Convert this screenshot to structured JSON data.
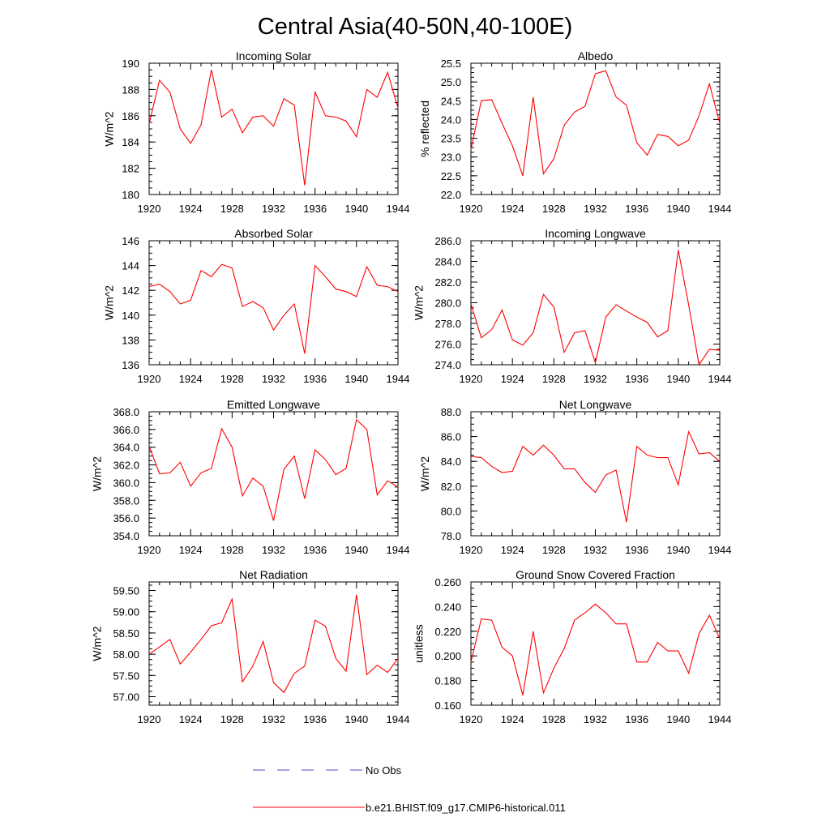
{
  "figure": {
    "title": "Central Asia(40-50N,40-100E)",
    "legend": [
      {
        "label": "No Obs",
        "style": "dashed",
        "color": "#4a4ac8"
      },
      {
        "label": "b.e21.BHIST.f09_g17.CMIP6-historical.011",
        "style": "solid",
        "color": "#ff0000"
      }
    ]
  },
  "chart_data": [
    {
      "type": "line",
      "title": "Incoming Solar",
      "ylabel": "W/m^2",
      "xlim": [
        1920,
        1944
      ],
      "ylim": [
        180,
        190
      ],
      "x_ticks": [
        "1920",
        "1924",
        "1928",
        "1932",
        "1936",
        "1940",
        "1944"
      ],
      "y_ticks": [
        "180",
        "182",
        "184",
        "186",
        "188",
        "190"
      ],
      "series": [
        {
          "color": "#ff0000",
          "x": [
            1920,
            1921,
            1922,
            1923,
            1924,
            1925,
            1926,
            1927,
            1928,
            1929,
            1930,
            1931,
            1932,
            1933,
            1934,
            1935,
            1936,
            1937,
            1938,
            1939,
            1940,
            1941,
            1942,
            1943,
            1944
          ],
          "values": [
            185.4,
            188.7,
            187.8,
            185.0,
            183.9,
            185.3,
            189.5,
            185.9,
            186.5,
            184.7,
            185.9,
            186.0,
            185.2,
            187.3,
            186.8,
            180.7,
            187.8,
            186.0,
            185.9,
            185.6,
            184.4,
            188.0,
            187.4,
            189.3,
            186.6
          ]
        }
      ]
    },
    {
      "type": "line",
      "title": "Albedo",
      "ylabel": "% reflected",
      "xlim": [
        1920,
        1944
      ],
      "ylim": [
        22.0,
        25.5
      ],
      "x_ticks": [
        "1920",
        "1924",
        "1928",
        "1932",
        "1936",
        "1940",
        "1944"
      ],
      "y_ticks": [
        "22.0",
        "22.5",
        "23.0",
        "23.5",
        "24.0",
        "24.5",
        "25.0",
        "25.5"
      ],
      "series": [
        {
          "color": "#ff0000",
          "x": [
            1920,
            1921,
            1922,
            1923,
            1924,
            1925,
            1926,
            1927,
            1928,
            1929,
            1930,
            1931,
            1932,
            1933,
            1934,
            1935,
            1936,
            1937,
            1938,
            1939,
            1940,
            1941,
            1942,
            1943,
            1944
          ],
          "values": [
            23.2,
            24.5,
            24.53,
            23.9,
            23.3,
            22.5,
            24.6,
            22.55,
            22.95,
            23.85,
            24.2,
            24.35,
            25.22,
            25.3,
            24.6,
            24.38,
            23.38,
            23.05,
            23.6,
            23.55,
            23.3,
            23.45,
            24.1,
            24.95,
            23.9
          ]
        }
      ]
    },
    {
      "type": "line",
      "title": "Absorbed Solar",
      "ylabel": "W/m^2",
      "xlim": [
        1920,
        1944
      ],
      "ylim": [
        136,
        146
      ],
      "x_ticks": [
        "1920",
        "1924",
        "1928",
        "1932",
        "1936",
        "1940",
        "1944"
      ],
      "y_ticks": [
        "136",
        "138",
        "140",
        "142",
        "144",
        "146"
      ],
      "series": [
        {
          "color": "#ff0000",
          "x": [
            1920,
            1921,
            1922,
            1923,
            1924,
            1925,
            1926,
            1927,
            1928,
            1929,
            1930,
            1931,
            1932,
            1933,
            1934,
            1935,
            1936,
            1937,
            1938,
            1939,
            1940,
            1941,
            1942,
            1943,
            1944
          ],
          "values": [
            142.3,
            142.5,
            141.9,
            140.9,
            141.2,
            143.6,
            143.1,
            144.1,
            143.8,
            140.7,
            141.1,
            140.6,
            138.8,
            140.0,
            140.9,
            136.9,
            144.0,
            143.1,
            142.1,
            141.9,
            141.5,
            143.9,
            142.4,
            142.3,
            141.9
          ]
        }
      ]
    },
    {
      "type": "line",
      "title": "Incoming Longwave",
      "ylabel": "W/m^2",
      "xlim": [
        1920,
        1944
      ],
      "ylim": [
        274.0,
        286.0
      ],
      "x_ticks": [
        "1920",
        "1924",
        "1928",
        "1932",
        "1936",
        "1940",
        "1944"
      ],
      "y_ticks": [
        "274.0",
        "276.0",
        "278.0",
        "280.0",
        "282.0",
        "284.0",
        "286.0"
      ],
      "series": [
        {
          "color": "#ff0000",
          "x": [
            1920,
            1921,
            1922,
            1923,
            1924,
            1925,
            1926,
            1927,
            1928,
            1929,
            1930,
            1931,
            1932,
            1933,
            1934,
            1935,
            1936,
            1937,
            1938,
            1939,
            1940,
            1941,
            1942,
            1943,
            1944
          ],
          "values": [
            279.9,
            276.6,
            277.4,
            279.3,
            276.4,
            275.9,
            277.1,
            280.8,
            279.6,
            275.2,
            277.1,
            277.3,
            274.2,
            278.6,
            279.8,
            279.2,
            278.6,
            278.1,
            276.7,
            277.3,
            285.1,
            279.8,
            274.0,
            275.5,
            275.4
          ]
        }
      ]
    },
    {
      "type": "line",
      "title": "Emitted Longwave",
      "ylabel": "W/m^2",
      "xlim": [
        1920,
        1944
      ],
      "ylim": [
        354.0,
        368.0
      ],
      "x_ticks": [
        "1920",
        "1924",
        "1928",
        "1932",
        "1936",
        "1940",
        "1944"
      ],
      "y_ticks": [
        "354.0",
        "356.0",
        "358.0",
        "360.0",
        "362.0",
        "364.0",
        "366.0",
        "368.0"
      ],
      "series": [
        {
          "color": "#ff0000",
          "x": [
            1920,
            1921,
            1922,
            1923,
            1924,
            1925,
            1926,
            1927,
            1928,
            1929,
            1930,
            1931,
            1932,
            1933,
            1934,
            1935,
            1936,
            1937,
            1938,
            1939,
            1940,
            1941,
            1942,
            1943,
            1944
          ],
          "values": [
            364.1,
            361.0,
            361.1,
            362.3,
            359.6,
            361.1,
            361.6,
            366.1,
            364.0,
            358.5,
            360.5,
            359.6,
            355.7,
            361.5,
            363.0,
            358.2,
            363.7,
            362.6,
            360.9,
            361.6,
            367.1,
            366.0,
            358.6,
            360.2,
            359.5
          ]
        }
      ]
    },
    {
      "type": "line",
      "title": "Net Longwave",
      "ylabel": "W/m^2",
      "xlim": [
        1920,
        1944
      ],
      "ylim": [
        78.0,
        88.0
      ],
      "x_ticks": [
        "1920",
        "1924",
        "1928",
        "1932",
        "1936",
        "1940",
        "1944"
      ],
      "y_ticks": [
        "78.0",
        "80.0",
        "82.0",
        "84.0",
        "86.0",
        "88.0"
      ],
      "series": [
        {
          "color": "#ff0000",
          "x": [
            1920,
            1921,
            1922,
            1923,
            1924,
            1925,
            1926,
            1927,
            1928,
            1929,
            1930,
            1931,
            1932,
            1933,
            1934,
            1935,
            1936,
            1937,
            1938,
            1939,
            1940,
            1941,
            1942,
            1943,
            1944
          ],
          "values": [
            84.4,
            84.3,
            83.6,
            83.1,
            83.2,
            85.2,
            84.5,
            85.3,
            84.5,
            83.4,
            83.4,
            82.3,
            81.5,
            82.9,
            83.3,
            79.1,
            85.2,
            84.5,
            84.3,
            84.3,
            82.1,
            86.4,
            84.6,
            84.7,
            84.0
          ]
        }
      ]
    },
    {
      "type": "line",
      "title": "Net Radiation",
      "ylabel": "W/m^2",
      "xlim": [
        1920,
        1944
      ],
      "ylim": [
        56.8,
        59.7
      ],
      "x_ticks": [
        "1920",
        "1924",
        "1928",
        "1932",
        "1936",
        "1940",
        "1944"
      ],
      "y_ticks": [
        "57.00",
        "57.50",
        "58.00",
        "58.50",
        "59.00",
        "59.50"
      ],
      "series": [
        {
          "color": "#ff0000",
          "x": [
            1920,
            1921,
            1922,
            1923,
            1924,
            1925,
            1926,
            1927,
            1928,
            1929,
            1930,
            1931,
            1932,
            1933,
            1934,
            1935,
            1936,
            1937,
            1938,
            1939,
            1940,
            1941,
            1942,
            1943,
            1944
          ],
          "values": [
            58.0,
            58.17,
            58.35,
            57.77,
            58.05,
            58.35,
            58.67,
            58.74,
            59.3,
            57.35,
            57.72,
            58.3,
            57.33,
            57.1,
            57.55,
            57.72,
            58.8,
            58.66,
            57.9,
            57.6,
            59.4,
            57.52,
            57.74,
            57.57,
            57.9
          ]
        }
      ]
    },
    {
      "type": "line",
      "title": "Ground Snow Covered Fraction",
      "ylabel": "unitless",
      "xlim": [
        1920,
        1944
      ],
      "ylim": [
        0.16,
        0.26
      ],
      "x_ticks": [
        "1920",
        "1924",
        "1928",
        "1932",
        "1936",
        "1940",
        "1944"
      ],
      "y_ticks": [
        "0.160",
        "0.180",
        "0.200",
        "0.220",
        "0.240",
        "0.260"
      ],
      "series": [
        {
          "color": "#ff0000",
          "x": [
            1920,
            1921,
            1922,
            1923,
            1924,
            1925,
            1926,
            1927,
            1928,
            1929,
            1930,
            1931,
            1932,
            1933,
            1934,
            1935,
            1936,
            1937,
            1938,
            1939,
            1940,
            1941,
            1942,
            1943,
            1944
          ],
          "values": [
            0.195,
            0.23,
            0.229,
            0.207,
            0.2,
            0.168,
            0.22,
            0.17,
            0.19,
            0.206,
            0.229,
            0.235,
            0.242,
            0.235,
            0.226,
            0.226,
            0.195,
            0.195,
            0.211,
            0.204,
            0.204,
            0.186,
            0.218,
            0.233,
            0.214
          ]
        }
      ]
    }
  ]
}
